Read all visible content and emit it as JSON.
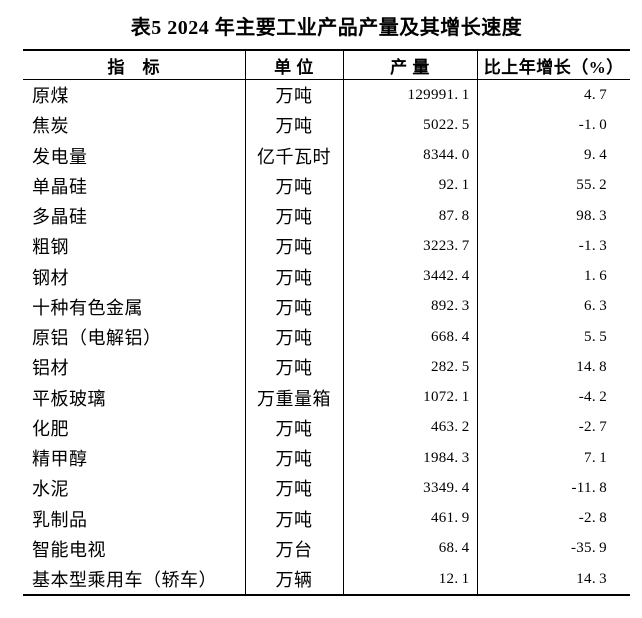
{
  "title": "表5 2024 年主要工业产品产量及其增长速度",
  "table": {
    "headers": {
      "indicator": "指　标",
      "unit": "单  位",
      "output": "产  量",
      "growth": "比上年增长（%）"
    },
    "rows": [
      {
        "indicator": "原煤",
        "unit": "万吨",
        "output": "129991.1",
        "growth": "4.7"
      },
      {
        "indicator": "焦炭",
        "unit": "万吨",
        "output": "5022.5",
        "growth": "-1.0"
      },
      {
        "indicator": "发电量",
        "unit": "亿千瓦时",
        "output": "8344.0",
        "growth": "9.4"
      },
      {
        "indicator": "单晶硅",
        "unit": "万吨",
        "output": "92.1",
        "growth": "55.2"
      },
      {
        "indicator": "多晶硅",
        "unit": "万吨",
        "output": "87.8",
        "growth": "98.3"
      },
      {
        "indicator": "粗钢",
        "unit": "万吨",
        "output": "3223.7",
        "growth": "-1.3"
      },
      {
        "indicator": "钢材",
        "unit": "万吨",
        "output": "3442.4",
        "growth": "1.6"
      },
      {
        "indicator": "十种有色金属",
        "unit": "万吨",
        "output": "892.3",
        "growth": "6.3"
      },
      {
        "indicator": "原铝（电解铝）",
        "unit": "万吨",
        "output": "668.4",
        "growth": "5.5"
      },
      {
        "indicator": "铝材",
        "unit": "万吨",
        "output": "282.5",
        "growth": "14.8"
      },
      {
        "indicator": "平板玻璃",
        "unit": "万重量箱",
        "output": "1072.1",
        "growth": "-4.2"
      },
      {
        "indicator": "化肥",
        "unit": "万吨",
        "output": "463.2",
        "growth": "-2.7"
      },
      {
        "indicator": "精甲醇",
        "unit": "万吨",
        "output": "1984.3",
        "growth": "7.1"
      },
      {
        "indicator": "水泥",
        "unit": "万吨",
        "output": "3349.4",
        "growth": "-11.8"
      },
      {
        "indicator": "乳制品",
        "unit": "万吨",
        "output": "461.9",
        "growth": "-2.8"
      },
      {
        "indicator": "智能电视",
        "unit": "万台",
        "output": "68.4",
        "growth": "-35.9"
      },
      {
        "indicator": "基本型乘用车（轿车）",
        "unit": "万辆",
        "output": "12.1",
        "growth": "14.3"
      }
    ]
  }
}
